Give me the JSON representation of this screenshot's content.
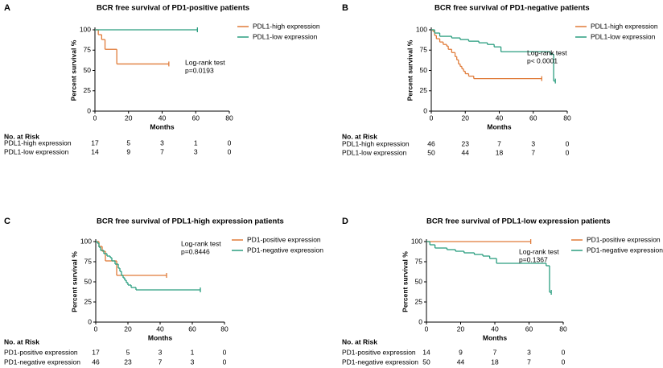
{
  "chart_data": [
    {
      "type": "line",
      "step": true,
      "panel_label": "A",
      "title": "BCR free survival of PD1-positive patients",
      "ylabel": "Percent survival %",
      "xlabel": "Months",
      "xlim": [
        0,
        80
      ],
      "xticks": [
        0,
        20,
        40,
        60,
        80
      ],
      "ylim": [
        0,
        100
      ],
      "yticks": [
        0,
        25,
        50,
        75,
        100
      ],
      "annotation": [
        "Log-rank test",
        "p=0.0193"
      ],
      "series": [
        {
          "name": "PDL1-high expression",
          "color": "#e07b39",
          "x": [
            0,
            2,
            4,
            6,
            13,
            44
          ],
          "values": [
            100,
            94,
            88,
            76,
            58,
            58
          ]
        },
        {
          "name": "PDL1-low expression",
          "color": "#2a9d7f",
          "x": [
            0,
            61
          ],
          "values": [
            100,
            100
          ]
        }
      ],
      "risk_table": {
        "title": "No. at Risk",
        "rows": [
          {
            "name": "PDL1-high expression",
            "counts": [
              17,
              5,
              3,
              1,
              0
            ]
          },
          {
            "name": "PDL1-low expression",
            "counts": [
              14,
              9,
              7,
              3,
              0
            ]
          }
        ]
      }
    },
    {
      "type": "line",
      "step": true,
      "panel_label": "B",
      "title": "BCR free survival of PD1-negative patients",
      "ylabel": "Percent survival %",
      "xlabel": "Months",
      "xlim": [
        0,
        80
      ],
      "xticks": [
        0,
        20,
        40,
        60,
        80
      ],
      "ylim": [
        0,
        100
      ],
      "yticks": [
        0,
        25,
        50,
        75,
        100
      ],
      "annotation": [
        "Log-rank test",
        "p< 0.0001"
      ],
      "series": [
        {
          "name": "PDL1-high expression",
          "color": "#e07b39",
          "x": [
            0,
            1,
            2,
            3,
            5,
            7,
            9,
            10,
            12,
            14,
            15,
            16,
            17,
            18,
            19,
            20,
            22,
            25,
            65
          ],
          "values": [
            100,
            98,
            93,
            89,
            85,
            82,
            80,
            76,
            72,
            67,
            63,
            58,
            55,
            52,
            49,
            46,
            43,
            40,
            40
          ]
        },
        {
          "name": "PDL1-low expression",
          "color": "#2a9d7f",
          "x": [
            0,
            2,
            5,
            12,
            17,
            22,
            28,
            33,
            37,
            41,
            70,
            72,
            73
          ],
          "values": [
            100,
            96,
            92,
            90,
            88,
            86,
            84,
            82,
            79,
            73,
            70,
            37,
            37
          ]
        }
      ],
      "risk_table": {
        "title": "No. at Risk",
        "rows": [
          {
            "name": "PDL1-high expression",
            "counts": [
              46,
              23,
              7,
              3,
              0
            ]
          },
          {
            "name": "PDL1-low expression",
            "counts": [
              50,
              44,
              18,
              7,
              0
            ]
          }
        ]
      }
    },
    {
      "type": "line",
      "step": true,
      "panel_label": "C",
      "title": "BCR free survival of PDL1-high expression patients",
      "ylabel": "Percent survival %",
      "xlabel": "Months",
      "xlim": [
        0,
        80
      ],
      "xticks": [
        0,
        20,
        40,
        60,
        80
      ],
      "ylim": [
        0,
        100
      ],
      "yticks": [
        0,
        25,
        50,
        75,
        100
      ],
      "annotation": [
        "Log-rank test",
        "p=0.8446"
      ],
      "series": [
        {
          "name": "PD1-positive expression",
          "color": "#e07b39",
          "x": [
            0,
            2,
            4,
            6,
            13,
            44
          ],
          "values": [
            100,
            94,
            88,
            76,
            58,
            58
          ]
        },
        {
          "name": "PD1-negative expression",
          "color": "#2a9d7f",
          "x": [
            0,
            1,
            2,
            3,
            5,
            7,
            9,
            10,
            12,
            14,
            15,
            16,
            17,
            18,
            19,
            20,
            22,
            25,
            65
          ],
          "values": [
            100,
            98,
            93,
            89,
            85,
            82,
            80,
            76,
            72,
            67,
            63,
            58,
            55,
            52,
            49,
            46,
            43,
            40,
            40
          ]
        }
      ],
      "risk_table": {
        "title": "No. at Risk",
        "rows": [
          {
            "name": "PD1-positive expression",
            "counts": [
              17,
              5,
              3,
              1,
              0
            ]
          },
          {
            "name": "PD1-negative expression",
            "counts": [
              46,
              23,
              7,
              3,
              0
            ]
          }
        ]
      }
    },
    {
      "type": "line",
      "step": true,
      "panel_label": "D",
      "title": "BCR free survival of PDL1-low expression patients",
      "ylabel": "Percent survival %",
      "xlabel": "Months",
      "xlim": [
        0,
        80
      ],
      "xticks": [
        0,
        20,
        40,
        60,
        80
      ],
      "ylim": [
        0,
        100
      ],
      "yticks": [
        0,
        25,
        50,
        75,
        100
      ],
      "annotation": [
        "Log-rank test",
        "p=0.1367"
      ],
      "series": [
        {
          "name": "PD1-positive expression",
          "color": "#e07b39",
          "x": [
            0,
            61
          ],
          "values": [
            100,
            100
          ]
        },
        {
          "name": "PD1-negative expression",
          "color": "#2a9d7f",
          "x": [
            0,
            2,
            5,
            12,
            17,
            22,
            28,
            33,
            37,
            41,
            70,
            72,
            73
          ],
          "values": [
            100,
            96,
            92,
            90,
            88,
            86,
            84,
            82,
            79,
            73,
            70,
            37,
            37
          ]
        }
      ],
      "risk_table": {
        "title": "No. at Risk",
        "rows": [
          {
            "name": "PD1-positive expression",
            "counts": [
              14,
              9,
              7,
              3,
              0
            ]
          },
          {
            "name": "PD1-negative expression",
            "counts": [
              50,
              44,
              18,
              7,
              0
            ]
          }
        ]
      }
    }
  ]
}
